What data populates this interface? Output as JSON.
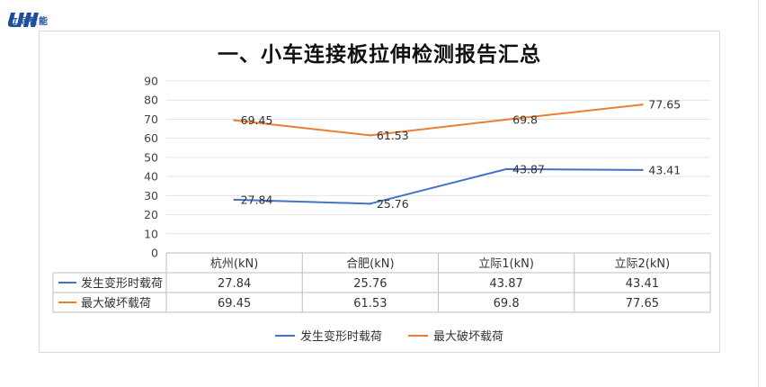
{
  "brand": {
    "logo_text": "立际智能"
  },
  "chart_data": {
    "type": "line",
    "title": "一、小车连接板拉伸检测报告汇总",
    "categories": [
      "杭州(kN)",
      "合肥(kN)",
      "立际1(kN)",
      "立际2(kN)"
    ],
    "series": [
      {
        "name": "发生变形时载荷",
        "color": "#4472c4",
        "values": [
          27.84,
          25.76,
          43.87,
          43.41
        ],
        "labels": [
          "27.84",
          "25.76",
          "43.87",
          "43.41"
        ]
      },
      {
        "name": "最大破坏载荷",
        "color": "#ed7d31",
        "values": [
          69.45,
          61.53,
          69.8,
          77.65
        ],
        "labels": [
          "69.45",
          "61.53",
          "69.8",
          "77.65"
        ]
      }
    ],
    "ylim": [
      0,
      90
    ],
    "yticks": [
      "0",
      "10",
      "20",
      "30",
      "40",
      "50",
      "60",
      "70",
      "80",
      "90"
    ],
    "grid": true,
    "data_table": true,
    "legend": "bottom"
  }
}
